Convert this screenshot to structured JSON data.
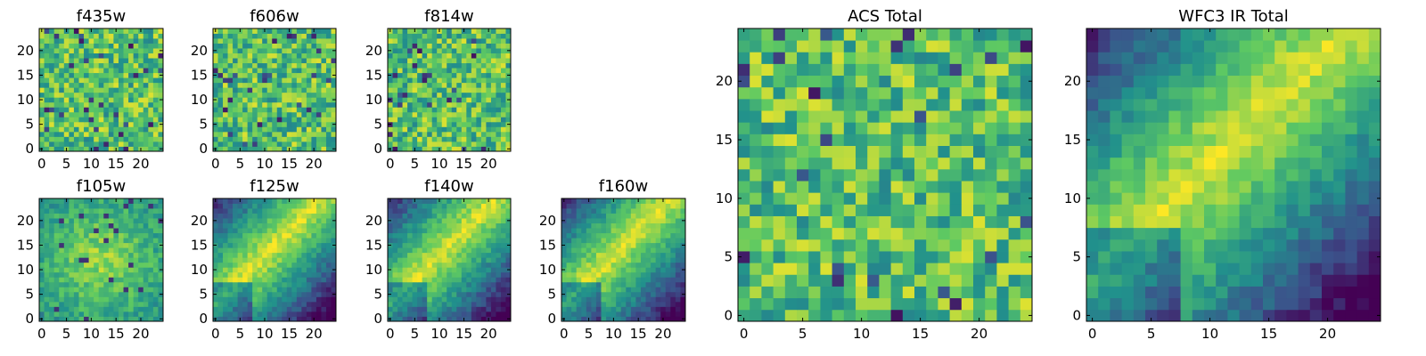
{
  "chart_data": {
    "type": "heatmap",
    "grid_size": 25,
    "colormap": [
      "#440154",
      "#3b528b",
      "#21918c",
      "#5ec962",
      "#fde725"
    ],
    "panels": [
      {
        "title": "f435w",
        "pattern": "noise",
        "xticks": [
          0,
          5,
          10,
          15,
          20
        ],
        "yticks": [
          0,
          5,
          10,
          15,
          20
        ],
        "seed": 11
      },
      {
        "title": "f606w",
        "pattern": "noise",
        "xticks": [
          0,
          5,
          10,
          15,
          20
        ],
        "yticks": [
          0,
          5,
          10,
          15,
          20
        ],
        "seed": 23
      },
      {
        "title": "f814w",
        "pattern": "noise",
        "xticks": [
          0,
          5,
          10,
          15,
          20
        ],
        "yticks": [
          0,
          5,
          10,
          15,
          20
        ],
        "seed": 37
      },
      {
        "title": "f105w",
        "pattern": "smooth",
        "xticks": [
          0,
          5,
          10,
          15,
          20
        ],
        "yticks": [
          0,
          5,
          10,
          15,
          20
        ],
        "seed": 41
      },
      {
        "title": "f125w",
        "pattern": "diagonal",
        "xticks": [
          0,
          5,
          10,
          15,
          20
        ],
        "yticks": [
          0,
          5,
          10,
          15,
          20
        ],
        "seed": 53
      },
      {
        "title": "f140w",
        "pattern": "diagonal",
        "xticks": [
          0,
          5,
          10,
          15,
          20
        ],
        "yticks": [
          0,
          5,
          10,
          15,
          20
        ],
        "seed": 67
      },
      {
        "title": "f160w",
        "pattern": "diagonal",
        "xticks": [
          0,
          5,
          10,
          15,
          20
        ],
        "yticks": [
          0,
          5,
          10,
          15,
          20
        ],
        "seed": 79
      },
      {
        "title": "ACS Total",
        "pattern": "noise",
        "xticks": [
          0,
          5,
          10,
          15,
          20
        ],
        "yticks": [
          0,
          5,
          10,
          15,
          20
        ],
        "seed": 97
      },
      {
        "title": "WFC3 IR Total",
        "pattern": "diagonal",
        "xticks": [
          0,
          5,
          10,
          15,
          20
        ],
        "yticks": [
          0,
          5,
          10,
          15,
          20
        ],
        "seed": 113
      }
    ]
  }
}
